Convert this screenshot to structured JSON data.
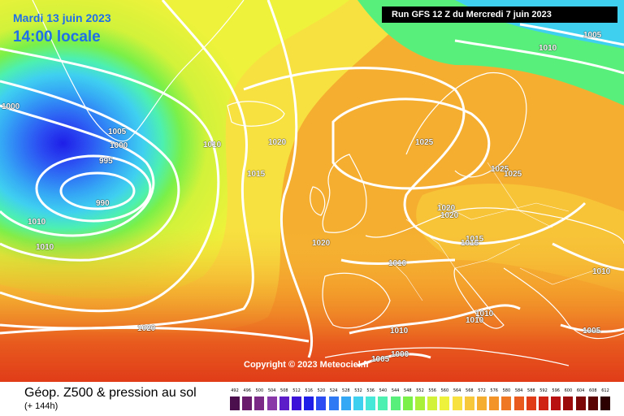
{
  "header": {
    "date_text": "Mardi 13 juin 2023",
    "time_text": "14:00 locale",
    "run_text": "Run GFS 12 Z du Mercredi 7 juin 2023"
  },
  "copyright": "Copyright © 2023 Meteociel.fr",
  "legend": {
    "title": "Géop. Z500 & pression au sol",
    "subtitle": "(+ 144h)",
    "scale_values": [
      "492",
      "496",
      "500",
      "504",
      "508",
      "512",
      "516",
      "520",
      "524",
      "528",
      "532",
      "536",
      "540",
      "544",
      "548",
      "552",
      "556",
      "560",
      "564",
      "568",
      "572",
      "576",
      "580",
      "584",
      "588",
      "592",
      "596",
      "600",
      "604",
      "608",
      "612"
    ],
    "scale_colors": [
      "#4b0f4e",
      "#6a1d6d",
      "#7b2a88",
      "#8a3aa8",
      "#5d1ec9",
      "#3a12d8",
      "#1e1ee8",
      "#2b4cf2",
      "#2f79f5",
      "#35a8f5",
      "#3fd0f0",
      "#48e8d8",
      "#4df0b0",
      "#58f07a",
      "#7af048",
      "#a8f03a",
      "#d2f23a",
      "#eef23a",
      "#f7e140",
      "#f7c83a",
      "#f5ae30",
      "#f29428",
      "#ef7824",
      "#e85a1e",
      "#e03c18",
      "#cf2414",
      "#b81010",
      "#9c0c0c",
      "#7c0808",
      "#5a0404",
      "#2c0000"
    ]
  },
  "isobars": [
    {
      "value": "1005",
      "map_note": "greenland"
    },
    {
      "value": "1000",
      "map_note": "greenland"
    },
    {
      "value": "995",
      "map_note": "low"
    },
    {
      "value": "990",
      "map_note": "low"
    },
    {
      "value": "1000",
      "map_note": "west"
    },
    {
      "value": "1010",
      "map_note": "west"
    },
    {
      "value": "1010",
      "map_note": "west2"
    },
    {
      "value": "1010",
      "map_note": "atlantic"
    },
    {
      "value": "1020",
      "map_note": "iceland"
    },
    {
      "value": "1015",
      "map_note": "atlantic"
    },
    {
      "value": "1025",
      "map_note": "north sea"
    },
    {
      "value": "1020",
      "map_note": "biscay"
    },
    {
      "value": "1020",
      "map_note": "azores"
    },
    {
      "value": "1005",
      "map_note": "ne"
    },
    {
      "value": "1010",
      "map_note": "ne"
    },
    {
      "value": "1025",
      "map_note": "baltic"
    },
    {
      "value": "1025",
      "map_note": "baltic2"
    },
    {
      "value": "1020",
      "map_note": "germany"
    },
    {
      "value": "1020",
      "map_note": "germany2"
    },
    {
      "value": "1015",
      "map_note": "alps"
    },
    {
      "value": "1015",
      "map_note": "alps2"
    },
    {
      "value": "1010",
      "map_note": "france"
    },
    {
      "value": "1010",
      "map_note": "east"
    },
    {
      "value": "1010",
      "map_note": "italy"
    },
    {
      "value": "1010",
      "map_note": "italy2"
    },
    {
      "value": "1010",
      "map_note": "med"
    },
    {
      "value": "1005",
      "map_note": "med"
    },
    {
      "value": "1000",
      "map_note": "med"
    },
    {
      "value": "1005",
      "map_note": "east"
    }
  ]
}
